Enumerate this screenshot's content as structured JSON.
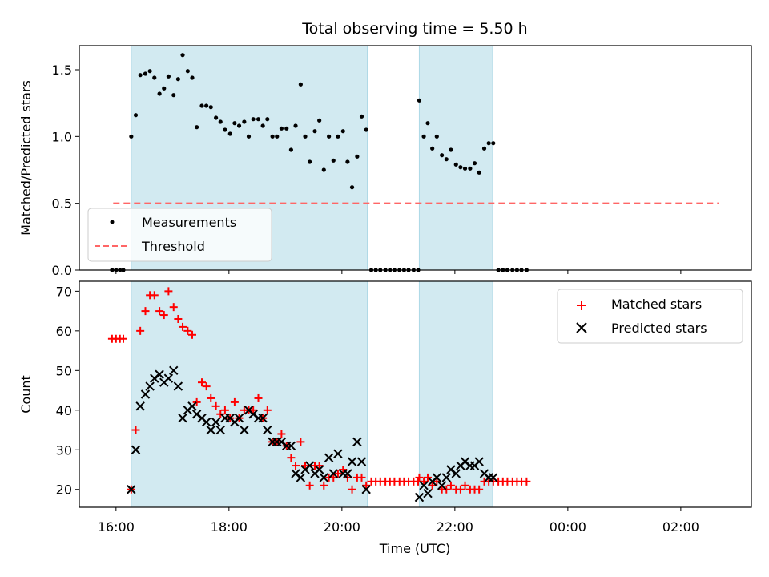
{
  "title": "Total observing time = 5.50 h",
  "xlabel": "Time (UTC)",
  "xticks": [
    "16:00",
    "18:00",
    "20:00",
    "22:00",
    "00:00",
    "02:00"
  ],
  "xtick_hours": [
    16,
    18,
    20,
    22,
    24,
    26
  ],
  "xlim": [
    15.35,
    27.25
  ],
  "observing_windows": [
    [
      16.27,
      20.45
    ],
    [
      21.37,
      22.67
    ]
  ],
  "window_color": "#add8e6",
  "chart_data": [
    {
      "type": "scatter",
      "ylabel": "Matched/Predicted stars",
      "ylim": [
        0,
        1.68
      ],
      "yticks": [
        "0.0",
        "0.5",
        "1.0",
        "1.5"
      ],
      "ytick_values": [
        0,
        0.5,
        1.0,
        1.5
      ],
      "legend_position": "lower-left",
      "threshold": {
        "name": "Threshold",
        "value": 0.5,
        "x_range": [
          15.95,
          27.25
        ],
        "color": "#ff6666"
      },
      "series": [
        {
          "name": "Measurements",
          "color": "#000000",
          "x": [
            15.93,
            16.0,
            16.07,
            16.13,
            16.27,
            16.35,
            16.43,
            16.52,
            16.6,
            16.68,
            16.77,
            16.85,
            16.93,
            17.02,
            17.1,
            17.18,
            17.27,
            17.35,
            17.43,
            17.52,
            17.6,
            17.68,
            17.77,
            17.85,
            17.93,
            18.02,
            18.1,
            18.18,
            18.27,
            18.35,
            18.43,
            18.52,
            18.6,
            18.68,
            18.77,
            18.85,
            18.93,
            19.02,
            19.1,
            19.18,
            19.27,
            19.35,
            19.43,
            19.52,
            19.6,
            19.68,
            19.77,
            19.85,
            19.93,
            20.02,
            20.1,
            20.18,
            20.27,
            20.35,
            20.43,
            20.52,
            20.6,
            20.68,
            20.77,
            20.85,
            20.93,
            21.02,
            21.1,
            21.18,
            21.27,
            21.35,
            21.37,
            21.45,
            21.52,
            21.6,
            21.68,
            21.77,
            21.85,
            21.93,
            22.02,
            22.1,
            22.18,
            22.27,
            22.35,
            22.43,
            22.52,
            22.6,
            22.68,
            22.77,
            22.85,
            22.93,
            23.02,
            23.1,
            23.18,
            23.27
          ],
          "y": [
            0,
            0,
            0,
            0,
            1.0,
            1.16,
            1.46,
            1.47,
            1.49,
            1.44,
            1.32,
            1.36,
            1.45,
            1.31,
            1.43,
            1.61,
            1.49,
            1.44,
            1.07,
            1.23,
            1.23,
            1.22,
            1.14,
            1.11,
            1.05,
            1.02,
            1.1,
            1.08,
            1.11,
            1.0,
            1.13,
            1.13,
            1.08,
            1.13,
            1.0,
            1.0,
            1.06,
            1.06,
            0.9,
            1.08,
            1.39,
            1.0,
            0.81,
            1.04,
            1.12,
            0.75,
            1.0,
            0.82,
            1.0,
            1.04,
            0.81,
            0.62,
            0.85,
            1.15,
            1.05,
            0,
            0,
            0,
            0,
            0,
            0,
            0,
            0,
            0,
            0,
            0,
            1.27,
            1.0,
            1.1,
            0.91,
            1.0,
            0.86,
            0.83,
            0.9,
            0.79,
            0.77,
            0.76,
            0.76,
            0.8,
            0.73,
            0.91,
            0.95,
            0.95,
            0,
            0,
            0,
            0,
            0,
            0,
            0
          ]
        }
      ]
    },
    {
      "type": "scatter",
      "ylabel": "Count",
      "ylim": [
        15.5,
        72.5
      ],
      "yticks": [
        "20",
        "30",
        "40",
        "50",
        "60",
        "70"
      ],
      "ytick_values": [
        20,
        30,
        40,
        50,
        60,
        70
      ],
      "legend_position": "upper-right",
      "series": [
        {
          "name": "Matched stars",
          "marker": "plus",
          "color": "#ff0000",
          "x": [
            15.93,
            16.0,
            16.07,
            16.13,
            16.27,
            16.35,
            16.43,
            16.52,
            16.6,
            16.68,
            16.77,
            16.85,
            16.93,
            17.02,
            17.1,
            17.18,
            17.27,
            17.35,
            17.43,
            17.52,
            17.6,
            17.68,
            17.77,
            17.85,
            17.93,
            18.02,
            18.1,
            18.18,
            18.27,
            18.35,
            18.43,
            18.52,
            18.6,
            18.68,
            18.77,
            18.85,
            18.93,
            19.02,
            19.1,
            19.18,
            19.27,
            19.35,
            19.43,
            19.52,
            19.6,
            19.68,
            19.77,
            19.85,
            19.93,
            20.02,
            20.1,
            20.18,
            20.27,
            20.35,
            20.43,
            20.52,
            20.6,
            20.68,
            20.77,
            20.85,
            20.93,
            21.02,
            21.1,
            21.18,
            21.27,
            21.35,
            21.37,
            21.45,
            21.52,
            21.6,
            21.68,
            21.77,
            21.85,
            21.93,
            22.02,
            22.1,
            22.18,
            22.27,
            22.35,
            22.43,
            22.52,
            22.6,
            22.68,
            22.77,
            22.85,
            22.93,
            23.02,
            23.1,
            23.18,
            23.27
          ],
          "y": [
            58,
            58,
            58,
            58,
            20,
            35,
            60,
            65,
            69,
            69,
            65,
            64,
            70,
            66,
            63,
            61,
            60,
            59,
            42,
            47,
            46,
            43,
            41,
            39,
            40,
            38,
            42,
            38,
            40,
            40,
            40,
            43,
            38,
            40,
            32,
            32,
            34,
            31,
            28,
            26,
            32,
            26,
            21,
            26,
            26,
            21,
            23,
            23,
            24,
            25,
            23,
            20,
            23,
            23,
            21,
            22,
            22,
            22,
            22,
            22,
            22,
            22,
            22,
            22,
            22,
            22,
            23,
            22,
            23,
            21,
            22,
            20,
            20,
            21,
            20,
            20,
            21,
            20,
            20,
            20,
            22,
            22,
            22,
            22,
            22,
            22,
            22,
            22,
            22,
            22
          ]
        },
        {
          "name": "Predicted stars",
          "marker": "cross",
          "color": "#000000",
          "x": [
            16.27,
            16.35,
            16.43,
            16.52,
            16.6,
            16.68,
            16.77,
            16.85,
            16.93,
            17.02,
            17.1,
            17.18,
            17.27,
            17.35,
            17.43,
            17.52,
            17.6,
            17.68,
            17.77,
            17.85,
            17.93,
            18.02,
            18.1,
            18.18,
            18.27,
            18.35,
            18.43,
            18.52,
            18.6,
            18.68,
            18.77,
            18.85,
            18.93,
            19.02,
            19.1,
            19.18,
            19.27,
            19.35,
            19.43,
            19.52,
            19.6,
            19.68,
            19.77,
            19.85,
            19.93,
            20.02,
            20.1,
            20.18,
            20.27,
            20.35,
            20.43,
            21.37,
            21.45,
            21.52,
            21.6,
            21.68,
            21.77,
            21.85,
            21.93,
            22.02,
            22.1,
            22.18,
            22.27,
            22.35,
            22.43,
            22.52,
            22.6,
            22.68
          ],
          "y": [
            20,
            30,
            41,
            44,
            46,
            48,
            49,
            47,
            48,
            50,
            46,
            38,
            40,
            41,
            39,
            38,
            37,
            35,
            37,
            35,
            38,
            38,
            37,
            38,
            35,
            40,
            39,
            38,
            38,
            35,
            32,
            32,
            32,
            31,
            31,
            24,
            23,
            25,
            26,
            24,
            25,
            23,
            28,
            24,
            29,
            24,
            24,
            27,
            32,
            27,
            20,
            18,
            21,
            19,
            22,
            23,
            21,
            23,
            25,
            24,
            26,
            27,
            26,
            26,
            27,
            24,
            23,
            23
          ]
        }
      ]
    }
  ]
}
